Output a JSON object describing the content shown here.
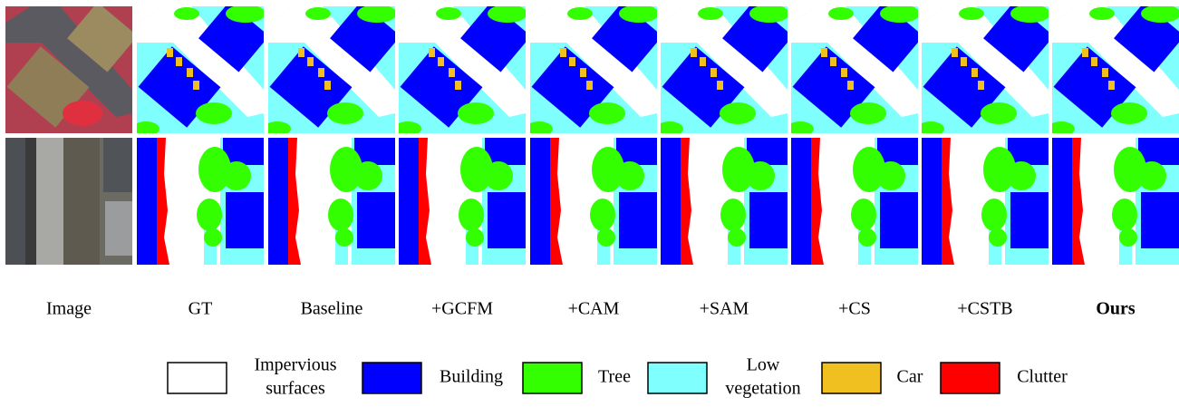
{
  "columns": [
    "Image",
    "GT",
    "Baseline",
    "+GCFM",
    "+CAM",
    "+SAM",
    "+CS",
    "+CSTB",
    "Ours"
  ],
  "legend": [
    {
      "lines": [
        "Impervious",
        "surfaces"
      ]
    },
    {
      "lines": [
        "Building"
      ]
    },
    {
      "lines": [
        "Tree"
      ]
    },
    {
      "lines": [
        "Low",
        "vegetation"
      ]
    },
    {
      "lines": [
        "Car"
      ]
    },
    {
      "lines": [
        "Clutter"
      ]
    }
  ]
}
